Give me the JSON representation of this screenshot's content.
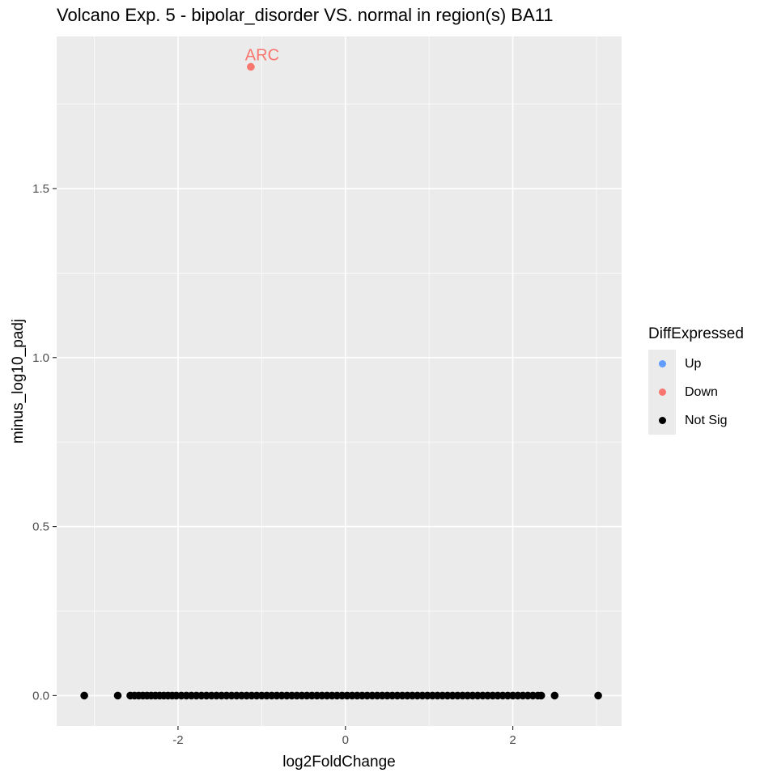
{
  "chart_data": {
    "type": "scatter",
    "title": "Volcano Exp. 5 - bipolar_disorder VS. normal in region(s) BA11",
    "xlabel": "log2FoldChange",
    "ylabel": "minus_log10_padj",
    "xlim": [
      -3.45,
      3.3
    ],
    "ylim": [
      -0.09,
      1.95
    ],
    "x_ticks": [
      -2,
      0,
      2
    ],
    "x_tick_labels": [
      "-2",
      "0",
      "2"
    ],
    "y_ticks": [
      0.0,
      0.5,
      1.0,
      1.5
    ],
    "y_tick_labels": [
      "0.0",
      "0.5",
      "1.0",
      "1.5"
    ],
    "grid": true,
    "legend": {
      "title": "DiffExpressed",
      "position": "right",
      "entries": [
        {
          "label": "Up",
          "color": "#619cff"
        },
        {
          "label": "Down",
          "color": "#f8766d"
        },
        {
          "label": "Not Sig",
          "color": "#000000"
        }
      ]
    },
    "series": [
      {
        "name": "Down",
        "color": "#f8766d",
        "points": [
          {
            "x": -1.13,
            "y": 1.86,
            "label": "ARC"
          }
        ]
      },
      {
        "name": "Not Sig",
        "color": "#000000",
        "points": [
          {
            "x": -3.12,
            "y": 0
          },
          {
            "x": -2.72,
            "y": 0
          },
          {
            "x": -2.57,
            "y": 0
          },
          {
            "x": -2.52,
            "y": 0
          },
          {
            "x": -2.47,
            "y": 0
          },
          {
            "x": -2.42,
            "y": 0
          },
          {
            "x": -2.37,
            "y": 0
          },
          {
            "x": -2.32,
            "y": 0
          },
          {
            "x": -2.27,
            "y": 0
          },
          {
            "x": -2.22,
            "y": 0
          },
          {
            "x": -2.17,
            "y": 0
          },
          {
            "x": -2.12,
            "y": 0
          },
          {
            "x": -2.07,
            "y": 0
          },
          {
            "x": -2.02,
            "y": 0
          },
          {
            "x": -1.96,
            "y": 0
          },
          {
            "x": -1.9,
            "y": 0
          },
          {
            "x": -1.84,
            "y": 0
          },
          {
            "x": -1.78,
            "y": 0
          },
          {
            "x": -1.72,
            "y": 0
          },
          {
            "x": -1.66,
            "y": 0
          },
          {
            "x": -1.6,
            "y": 0
          },
          {
            "x": -1.54,
            "y": 0
          },
          {
            "x": -1.48,
            "y": 0
          },
          {
            "x": -1.42,
            "y": 0
          },
          {
            "x": -1.36,
            "y": 0
          },
          {
            "x": -1.3,
            "y": 0
          },
          {
            "x": -1.24,
            "y": 0
          },
          {
            "x": -1.18,
            "y": 0
          },
          {
            "x": -1.12,
            "y": 0
          },
          {
            "x": -1.06,
            "y": 0
          },
          {
            "x": -1.0,
            "y": 0
          },
          {
            "x": -0.94,
            "y": 0
          },
          {
            "x": -0.88,
            "y": 0
          },
          {
            "x": -0.82,
            "y": 0
          },
          {
            "x": -0.76,
            "y": 0
          },
          {
            "x": -0.7,
            "y": 0
          },
          {
            "x": -0.64,
            "y": 0
          },
          {
            "x": -0.58,
            "y": 0
          },
          {
            "x": -0.52,
            "y": 0
          },
          {
            "x": -0.46,
            "y": 0
          },
          {
            "x": -0.4,
            "y": 0
          },
          {
            "x": -0.34,
            "y": 0
          },
          {
            "x": -0.28,
            "y": 0
          },
          {
            "x": -0.22,
            "y": 0
          },
          {
            "x": -0.16,
            "y": 0
          },
          {
            "x": -0.1,
            "y": 0
          },
          {
            "x": -0.04,
            "y": 0
          },
          {
            "x": 0.02,
            "y": 0
          },
          {
            "x": 0.08,
            "y": 0
          },
          {
            "x": 0.14,
            "y": 0
          },
          {
            "x": 0.2,
            "y": 0
          },
          {
            "x": 0.26,
            "y": 0
          },
          {
            "x": 0.32,
            "y": 0
          },
          {
            "x": 0.38,
            "y": 0
          },
          {
            "x": 0.44,
            "y": 0
          },
          {
            "x": 0.5,
            "y": 0
          },
          {
            "x": 0.56,
            "y": 0
          },
          {
            "x": 0.62,
            "y": 0
          },
          {
            "x": 0.68,
            "y": 0
          },
          {
            "x": 0.74,
            "y": 0
          },
          {
            "x": 0.8,
            "y": 0
          },
          {
            "x": 0.86,
            "y": 0
          },
          {
            "x": 0.92,
            "y": 0
          },
          {
            "x": 0.98,
            "y": 0
          },
          {
            "x": 1.04,
            "y": 0
          },
          {
            "x": 1.1,
            "y": 0
          },
          {
            "x": 1.16,
            "y": 0
          },
          {
            "x": 1.22,
            "y": 0
          },
          {
            "x": 1.28,
            "y": 0
          },
          {
            "x": 1.34,
            "y": 0
          },
          {
            "x": 1.4,
            "y": 0
          },
          {
            "x": 1.46,
            "y": 0
          },
          {
            "x": 1.52,
            "y": 0
          },
          {
            "x": 1.58,
            "y": 0
          },
          {
            "x": 1.64,
            "y": 0
          },
          {
            "x": 1.7,
            "y": 0
          },
          {
            "x": 1.76,
            "y": 0
          },
          {
            "x": 1.82,
            "y": 0
          },
          {
            "x": 1.88,
            "y": 0
          },
          {
            "x": 1.94,
            "y": 0
          },
          {
            "x": 2.0,
            "y": 0
          },
          {
            "x": 2.06,
            "y": 0
          },
          {
            "x": 2.12,
            "y": 0
          },
          {
            "x": 2.18,
            "y": 0
          },
          {
            "x": 2.24,
            "y": 0
          },
          {
            "x": 2.3,
            "y": 0
          },
          {
            "x": 2.34,
            "y": 0
          },
          {
            "x": 2.5,
            "y": 0
          },
          {
            "x": 3.02,
            "y": 0
          }
        ]
      }
    ]
  }
}
